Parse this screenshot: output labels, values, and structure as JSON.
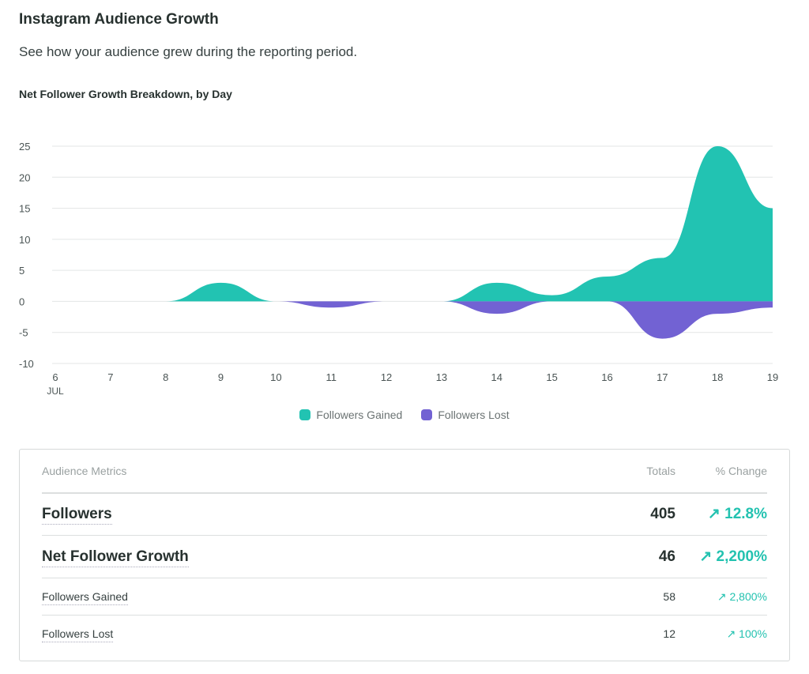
{
  "header": {
    "title": "Instagram Audience Growth",
    "subtitle": "See how your audience grew during the reporting period."
  },
  "chart_data": {
    "type": "area",
    "title": "Net Follower Growth Breakdown, by Day",
    "x": [
      6,
      7,
      8,
      9,
      10,
      11,
      12,
      13,
      14,
      15,
      16,
      17,
      18,
      19
    ],
    "x_month_label": "JUL",
    "ylim": [
      -10,
      25
    ],
    "yticks": [
      25,
      20,
      15,
      10,
      5,
      0,
      -5,
      -10
    ],
    "grid": true,
    "legend_position": "bottom",
    "series": [
      {
        "name": "Followers Gained",
        "color": "#22c3b2",
        "values": [
          0,
          0,
          0,
          3,
          0,
          0,
          0,
          0,
          3,
          1,
          4,
          7,
          25,
          15
        ]
      },
      {
        "name": "Followers Lost",
        "color": "#7262d3",
        "values": [
          0,
          0,
          0,
          0,
          0,
          -1,
          0,
          0,
          -2,
          0,
          0,
          -6,
          -2,
          -1
        ]
      }
    ]
  },
  "table": {
    "headers": [
      "Audience Metrics",
      "Totals",
      "% Change"
    ],
    "rows": [
      {
        "label": "Followers",
        "total": "405",
        "change": "↗ 12.8%"
      },
      {
        "label": "Net Follower Growth",
        "total": "46",
        "change": "↗ 2,200%"
      },
      {
        "label": "Followers Gained",
        "total": "58",
        "change": "↗ 2,800%"
      },
      {
        "label": "Followers Lost",
        "total": "12",
        "change": "↗ 100%"
      }
    ]
  }
}
